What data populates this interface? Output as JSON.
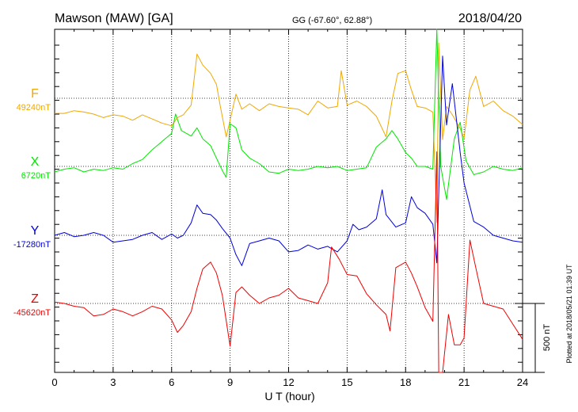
{
  "header": {
    "station": "Mawson (MAW)  [GA]",
    "coords": "GG (-67.60°,  62.88°)",
    "date": "2018/04/20"
  },
  "footer": {
    "plotted": "Plotted at 2018/05/21 01:39 UT"
  },
  "chart_data": {
    "type": "line",
    "title": "Mawson (MAW)  [GA]",
    "xlabel": "U T (hour)",
    "xlim": [
      0,
      24
    ],
    "xticks": [
      "0",
      "3",
      "6",
      "9",
      "12",
      "15",
      "18",
      "21",
      "24"
    ],
    "grid": true,
    "scale_bar_label": "500 nT",
    "scale_bar_nT": 500,
    "series": [
      {
        "name": "F",
        "baseline_label": "49240nT",
        "color": "#f0a800",
        "points": [
          [
            0,
            -110
          ],
          [
            0.5,
            -110
          ],
          [
            1,
            -90
          ],
          [
            1.5,
            -100
          ],
          [
            2,
            -115
          ],
          [
            2.5,
            -140
          ],
          [
            3,
            -120
          ],
          [
            3.5,
            -130
          ],
          [
            4,
            -160
          ],
          [
            4.5,
            -120
          ],
          [
            5,
            -150
          ],
          [
            5.5,
            -180
          ],
          [
            6,
            -200
          ],
          [
            6.3,
            -140
          ],
          [
            6.6,
            -120
          ],
          [
            7,
            -50
          ],
          [
            7.3,
            320
          ],
          [
            7.6,
            240
          ],
          [
            8,
            180
          ],
          [
            8.3,
            100
          ],
          [
            8.5,
            -60
          ],
          [
            8.8,
            -280
          ],
          [
            9,
            -160
          ],
          [
            9.3,
            30
          ],
          [
            9.6,
            -80
          ],
          [
            10,
            -40
          ],
          [
            10.5,
            -90
          ],
          [
            11,
            -40
          ],
          [
            11.5,
            -60
          ],
          [
            12,
            -70
          ],
          [
            12.5,
            -80
          ],
          [
            13,
            -120
          ],
          [
            13.5,
            -20
          ],
          [
            14,
            -70
          ],
          [
            14.5,
            -60
          ],
          [
            14.7,
            200
          ],
          [
            15,
            -50
          ],
          [
            15.5,
            -20
          ],
          [
            16,
            -60
          ],
          [
            16.5,
            -130
          ],
          [
            17,
            -280
          ],
          [
            17.3,
            -20
          ],
          [
            17.6,
            180
          ],
          [
            18,
            200
          ],
          [
            18.3,
            60
          ],
          [
            18.6,
            -60
          ],
          [
            19,
            -70
          ],
          [
            19.4,
            -100
          ],
          [
            19.6,
            -900
          ],
          [
            19.7,
            400
          ],
          [
            19.9,
            -300
          ],
          [
            20.1,
            -60
          ],
          [
            20.4,
            -120
          ],
          [
            20.8,
            -220
          ],
          [
            21,
            -290
          ],
          [
            21.3,
            60
          ],
          [
            21.6,
            160
          ],
          [
            22,
            -60
          ],
          [
            22.5,
            -20
          ],
          [
            23,
            -90
          ],
          [
            23.5,
            -130
          ],
          [
            24,
            -190
          ]
        ]
      },
      {
        "name": "X",
        "baseline_label": "6720nT",
        "color": "#00e600",
        "points": [
          [
            0,
            -40
          ],
          [
            0.5,
            -20
          ],
          [
            1,
            -10
          ],
          [
            1.5,
            -40
          ],
          [
            2,
            -20
          ],
          [
            2.5,
            -30
          ],
          [
            3,
            -10
          ],
          [
            3.5,
            -20
          ],
          [
            4,
            20
          ],
          [
            4.5,
            50
          ],
          [
            5,
            120
          ],
          [
            5.5,
            180
          ],
          [
            6,
            240
          ],
          [
            6.2,
            380
          ],
          [
            6.5,
            260
          ],
          [
            7,
            220
          ],
          [
            7.3,
            280
          ],
          [
            7.6,
            200
          ],
          [
            8,
            150
          ],
          [
            8.3,
            60
          ],
          [
            8.6,
            -30
          ],
          [
            8.8,
            -80
          ],
          [
            9,
            310
          ],
          [
            9.3,
            280
          ],
          [
            9.6,
            120
          ],
          [
            10,
            60
          ],
          [
            10.5,
            20
          ],
          [
            11,
            -40
          ],
          [
            11.5,
            -50
          ],
          [
            12,
            -20
          ],
          [
            12.5,
            -30
          ],
          [
            13,
            -20
          ],
          [
            13.5,
            0
          ],
          [
            14,
            -10
          ],
          [
            14.5,
            0
          ],
          [
            15,
            -30
          ],
          [
            15.5,
            -20
          ],
          [
            16,
            -10
          ],
          [
            16.5,
            140
          ],
          [
            17,
            200
          ],
          [
            17.3,
            260
          ],
          [
            17.6,
            200
          ],
          [
            18,
            100
          ],
          [
            18.3,
            60
          ],
          [
            18.6,
            0
          ],
          [
            19,
            0
          ],
          [
            19.4,
            -20
          ],
          [
            19.6,
            1100
          ],
          [
            19.8,
            0
          ],
          [
            20.1,
            -240
          ],
          [
            20.5,
            200
          ],
          [
            20.8,
            320
          ],
          [
            21.1,
            40
          ],
          [
            21.5,
            -60
          ],
          [
            22,
            -40
          ],
          [
            22.5,
            0
          ],
          [
            23,
            -20
          ],
          [
            23.5,
            -30
          ],
          [
            24,
            -10
          ]
        ]
      },
      {
        "name": "Y",
        "baseline_label": "-17280nT",
        "color": "#0000dd",
        "points": [
          [
            0,
            0
          ],
          [
            0.5,
            20
          ],
          [
            1,
            -10
          ],
          [
            1.5,
            0
          ],
          [
            2,
            20
          ],
          [
            2.5,
            0
          ],
          [
            3,
            -50
          ],
          [
            3.5,
            -40
          ],
          [
            4,
            -30
          ],
          [
            4.5,
            0
          ],
          [
            5,
            20
          ],
          [
            5.5,
            -30
          ],
          [
            6,
            10
          ],
          [
            6.3,
            -20
          ],
          [
            6.6,
            0
          ],
          [
            7,
            90
          ],
          [
            7.3,
            220
          ],
          [
            7.6,
            160
          ],
          [
            8,
            150
          ],
          [
            8.3,
            110
          ],
          [
            8.6,
            50
          ],
          [
            9,
            -20
          ],
          [
            9.3,
            -140
          ],
          [
            9.6,
            -220
          ],
          [
            10,
            -60
          ],
          [
            10.5,
            -40
          ],
          [
            11,
            -20
          ],
          [
            11.5,
            -40
          ],
          [
            12,
            -120
          ],
          [
            12.5,
            -110
          ],
          [
            13,
            -70
          ],
          [
            13.5,
            -100
          ],
          [
            14,
            -80
          ],
          [
            14.5,
            -120
          ],
          [
            15,
            -40
          ],
          [
            15.3,
            80
          ],
          [
            15.6,
            40
          ],
          [
            16,
            60
          ],
          [
            16.5,
            120
          ],
          [
            16.8,
            330
          ],
          [
            17,
            150
          ],
          [
            17.5,
            60
          ],
          [
            18,
            90
          ],
          [
            18.3,
            280
          ],
          [
            18.6,
            200
          ],
          [
            19,
            160
          ],
          [
            19.4,
            80
          ],
          [
            19.6,
            -200
          ],
          [
            19.7,
            300
          ],
          [
            19.9,
            1300
          ],
          [
            20.1,
            800
          ],
          [
            20.4,
            1100
          ],
          [
            20.8,
            600
          ],
          [
            21,
            380
          ],
          [
            21.5,
            100
          ],
          [
            22,
            60
          ],
          [
            22.5,
            0
          ],
          [
            23,
            -20
          ],
          [
            23.5,
            -40
          ],
          [
            24,
            -50
          ]
        ]
      },
      {
        "name": "Z",
        "baseline_label": "-45620nT",
        "color": "#ee0000",
        "points": [
          [
            0,
            10
          ],
          [
            0.5,
            0
          ],
          [
            1,
            -20
          ],
          [
            1.5,
            -30
          ],
          [
            2,
            -90
          ],
          [
            2.5,
            -80
          ],
          [
            3,
            -40
          ],
          [
            3.5,
            -60
          ],
          [
            4,
            -90
          ],
          [
            4.5,
            -60
          ],
          [
            5,
            -20
          ],
          [
            5.5,
            -40
          ],
          [
            6,
            -120
          ],
          [
            6.3,
            -210
          ],
          [
            6.6,
            -160
          ],
          [
            7,
            -60
          ],
          [
            7.3,
            110
          ],
          [
            7.6,
            250
          ],
          [
            8,
            300
          ],
          [
            8.3,
            220
          ],
          [
            8.6,
            60
          ],
          [
            9,
            -310
          ],
          [
            9.3,
            80
          ],
          [
            9.6,
            120
          ],
          [
            10,
            60
          ],
          [
            10.5,
            0
          ],
          [
            11,
            40
          ],
          [
            11.5,
            60
          ],
          [
            12,
            110
          ],
          [
            12.5,
            40
          ],
          [
            13,
            20
          ],
          [
            13.5,
            0
          ],
          [
            14,
            150
          ],
          [
            14.2,
            410
          ],
          [
            14.6,
            320
          ],
          [
            15,
            210
          ],
          [
            15.5,
            200
          ],
          [
            16,
            70
          ],
          [
            16.5,
            -10
          ],
          [
            17,
            -80
          ],
          [
            17.2,
            -200
          ],
          [
            17.5,
            260
          ],
          [
            18,
            300
          ],
          [
            18.3,
            220
          ],
          [
            18.6,
            120
          ],
          [
            19,
            -30
          ],
          [
            19.4,
            -130
          ],
          [
            19.6,
            1100
          ],
          [
            19.7,
            -800
          ],
          [
            19.9,
            -500
          ],
          [
            20.2,
            -80
          ],
          [
            20.5,
            -300
          ],
          [
            20.8,
            -300
          ],
          [
            21,
            -250
          ],
          [
            21.3,
            460
          ],
          [
            21.6,
            260
          ],
          [
            22,
            0
          ],
          [
            22.5,
            -20
          ],
          [
            23,
            -40
          ],
          [
            23.5,
            -150
          ],
          [
            24,
            -260
          ]
        ]
      }
    ]
  }
}
